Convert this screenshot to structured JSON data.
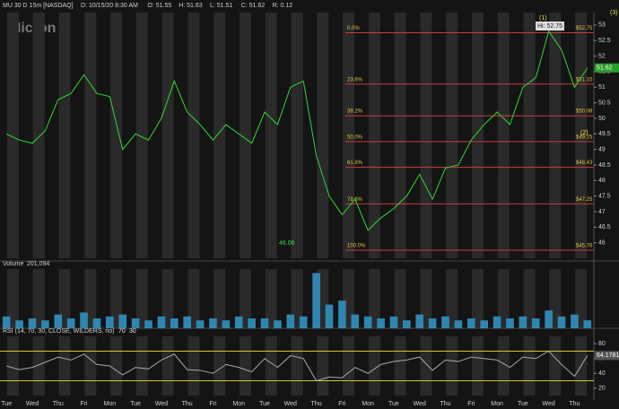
{
  "header": {
    "symbol": "MU 30 D 15m [NASDAQ]",
    "fields": [
      "D: 10/15/20 8:30 AM",
      "O: 51.55",
      "H: 51.63",
      "L: 51.51",
      "C: 51.62",
      "R: 0.12"
    ],
    "logo": "Micron"
  },
  "chart_data": [
    {
      "type": "line",
      "categories": [
        "Tue",
        null,
        "Wed",
        null,
        "Thu",
        null,
        "Fri",
        null,
        "Mon",
        null,
        "Tue",
        null,
        "Wed",
        null,
        "Thu",
        null,
        "Fri",
        null,
        "Mon",
        null,
        "Tue",
        null,
        "Wed",
        null,
        "Thu",
        null,
        "Fri",
        null,
        "Mon",
        null,
        "Tue",
        null,
        "Wed",
        null,
        "Thu",
        null,
        "Fri",
        null,
        "Mon",
        null,
        "Tue",
        null,
        "Wed",
        null,
        "Thu",
        null
      ],
      "values": [
        49.5,
        49.3,
        49.2,
        49.6,
        50.6,
        50.8,
        51.4,
        50.8,
        50.7,
        49.0,
        49.5,
        49.3,
        50.0,
        51.2,
        50.2,
        49.8,
        49.3,
        49.8,
        49.5,
        49.2,
        50.2,
        49.8,
        51.0,
        51.2,
        48.8,
        47.5,
        46.9,
        47.4,
        46.4,
        46.8,
        47.1,
        47.5,
        48.2,
        47.4,
        48.4,
        48.5,
        49.3,
        49.8,
        50.2,
        49.8,
        51.0,
        51.3,
        52.8,
        52.2,
        51.0,
        51.62
      ],
      "color": "#33d633",
      "ylim": [
        45.5,
        53.4
      ],
      "yticks": [
        46,
        46.5,
        47,
        47.5,
        48,
        48.5,
        49,
        49.5,
        50,
        50.5,
        51,
        51.5,
        52,
        52.5,
        53
      ],
      "last_value": 51.62,
      "fib_levels": {
        "labels": [
          "0.0%",
          "23.6%",
          "38.2%",
          "50.0%",
          "61.8%",
          "78.6%",
          "100.0%"
        ],
        "values": [
          52.75,
          51.1,
          50.08,
          49.25,
          48.43,
          47.25,
          45.76
        ],
        "value_labels": [
          "$52.75",
          "$51.10",
          "$50.08",
          "$49.25",
          "$48.43",
          "$47.25",
          "$45.76"
        ]
      },
      "annotations": [
        "(1)",
        "(2)",
        "(3)",
        "Hi: 52.75",
        "46.06"
      ]
    },
    {
      "type": "bar",
      "title": "Volume",
      "subtitle": "201,094",
      "values": [
        300000,
        200000,
        250000,
        200000,
        350000,
        250000,
        400000,
        250000,
        300000,
        350000,
        250000,
        200000,
        300000,
        250000,
        300000,
        200000,
        250000,
        200000,
        300000,
        250000,
        250000,
        200000,
        350000,
        300000,
        1400000,
        600000,
        700000,
        350000,
        300000,
        250000,
        300000,
        200000,
        350000,
        250000,
        300000,
        200000,
        250000,
        200000,
        300000,
        250000,
        300000,
        250000,
        450000,
        300000,
        350000,
        201094
      ],
      "color": "#2f86b0",
      "ylim": [
        0,
        1500000
      ]
    },
    {
      "type": "line",
      "title": "RSI (14, 70, 30, CLOSE, WILDERS, no)",
      "values": [
        50,
        45,
        48,
        55,
        62,
        58,
        66,
        52,
        50,
        38,
        48,
        46,
        58,
        66,
        45,
        44,
        40,
        52,
        48,
        42,
        60,
        48,
        64,
        60,
        30,
        35,
        34,
        48,
        40,
        52,
        56,
        58,
        62,
        44,
        58,
        56,
        62,
        60,
        58,
        48,
        62,
        60,
        70,
        52,
        36,
        64.1781
      ],
      "color": "#a8a8a8",
      "ylim": [
        10,
        90
      ],
      "yticks": [
        20,
        40,
        60,
        80
      ],
      "levels": [
        30,
        70
      ],
      "last_value": 64.1781
    }
  ]
}
